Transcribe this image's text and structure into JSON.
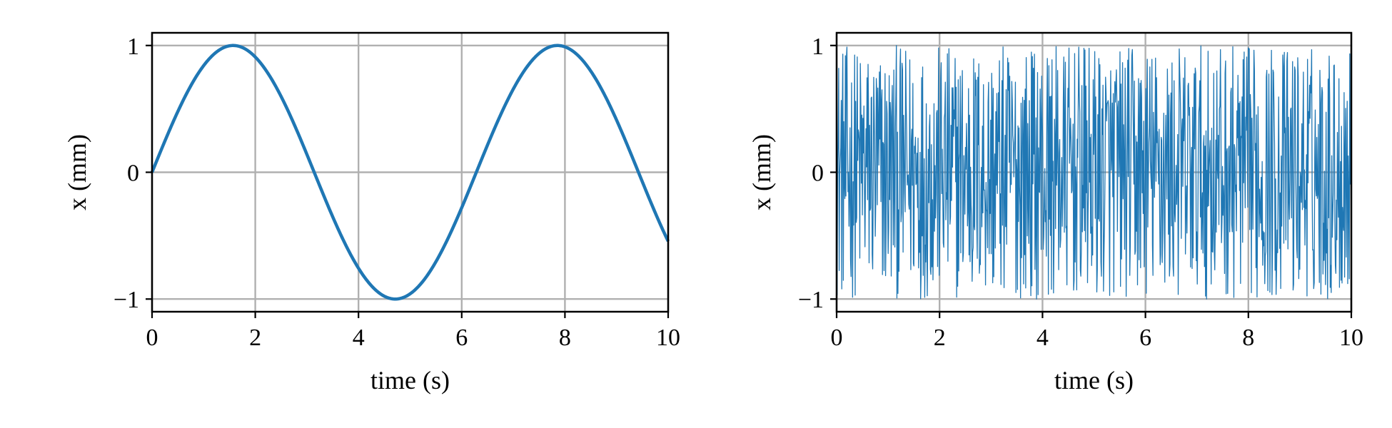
{
  "chart_data": [
    {
      "type": "line",
      "title": "",
      "xlabel": "time (s)",
      "ylabel": "x (mm)",
      "xlim": [
        0,
        10
      ],
      "ylim": [
        -1.1,
        1.1
      ],
      "x_ticks": [
        0,
        2,
        4,
        6,
        8,
        10
      ],
      "x_tick_labels": [
        "0",
        "2",
        "4",
        "6",
        "8",
        "10"
      ],
      "y_ticks": [
        -1,
        0,
        1
      ],
      "y_tick_labels": [
        "−1",
        "0",
        "1"
      ],
      "grid": true,
      "series": [
        {
          "color": "#1f77b4",
          "function": "sin(t)",
          "x_range": [
            0,
            10
          ],
          "peaks": [
            [
              1.57,
              1
            ],
            [
              7.85,
              1
            ]
          ],
          "troughs": [
            [
              4.71,
              -1
            ]
          ],
          "end_value": -0.54
        }
      ]
    },
    {
      "type": "line",
      "title": "",
      "xlabel": "time (s)",
      "ylabel": "x (mm)",
      "xlim": [
        0,
        10
      ],
      "ylim": [
        -1.1,
        1.1
      ],
      "x_ticks": [
        0,
        2,
        4,
        6,
        8,
        10
      ],
      "x_tick_labels": [
        "0",
        "2",
        "4",
        "6",
        "8",
        "10"
      ],
      "y_ticks": [
        -1,
        0,
        1
      ],
      "y_tick_labels": [
        "−1",
        "0",
        "1"
      ],
      "grid": true,
      "series": [
        {
          "color": "#1f77b4",
          "description": "uniform random noise",
          "value_range": [
            -1,
            1
          ],
          "x_range": [
            0,
            10
          ],
          "num_points": 1000
        }
      ]
    }
  ]
}
